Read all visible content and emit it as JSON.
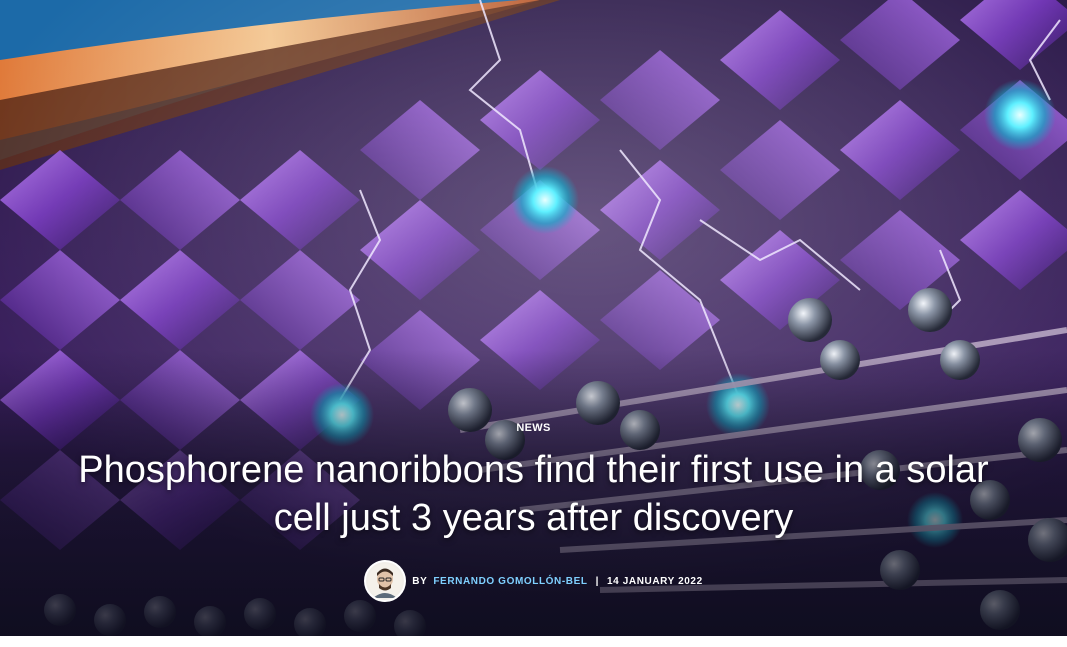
{
  "article": {
    "category": "NEWS",
    "title": "Phosphorene nanoribbons find their first use in a solar cell just 3 years after discovery",
    "byline_prefix": "BY",
    "author": "FERNANDO GOMOLLÓN-BEL",
    "separator": "|",
    "date": "14 JANUARY 2022"
  },
  "colors": {
    "author_link": "#7fd0ff",
    "crystal_purple": "#7a3fc0",
    "glow_cyan": "#3fe6ff"
  },
  "icons": {
    "avatar": "author-avatar"
  }
}
